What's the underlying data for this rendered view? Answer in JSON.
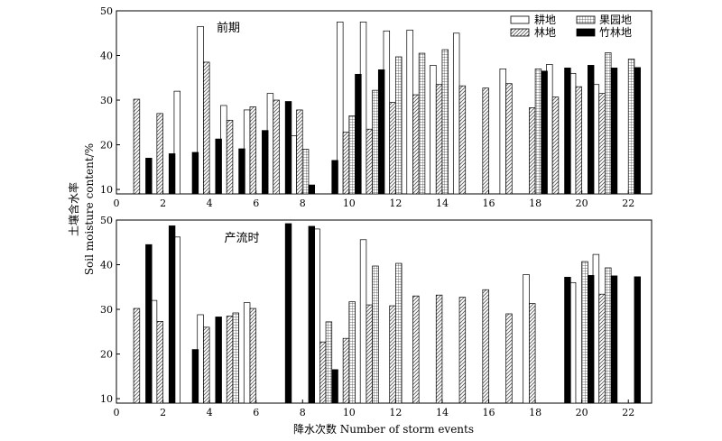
{
  "chart_data": {
    "type": "bar",
    "ylabel_cn": "土壤含水率",
    "ylabel_en": "Soil moisture content/%",
    "xlabel": "降水次数 Number of storm events",
    "x_ticks": [
      0,
      2,
      4,
      6,
      8,
      10,
      12,
      14,
      16,
      18,
      20,
      22
    ],
    "ylim": [
      9,
      50
    ],
    "y_ticks": [
      10,
      20,
      30,
      40,
      50
    ],
    "x_range": [
      0,
      23
    ],
    "legend": [
      {
        "key": "cropland",
        "label": "耕地",
        "fill": "#ffffff",
        "pattern": "plain"
      },
      {
        "key": "orchard",
        "label": "果园地",
        "fill": "#ffffff",
        "pattern": "grid"
      },
      {
        "key": "forest",
        "label": "林地",
        "fill": "#ffffff",
        "pattern": "hatch"
      },
      {
        "key": "bamboo",
        "label": "竹林地",
        "fill": "#000000",
        "pattern": "solid"
      }
    ],
    "series_order": [
      "cropland",
      "forest",
      "orchard",
      "bamboo"
    ],
    "panels": [
      {
        "title": "前期",
        "series": {
          "cropland": [
            null,
            null,
            32.0,
            46.5,
            28.8,
            27.8,
            31.5,
            22.0,
            null,
            47.5,
            47.5,
            45.5,
            45.7,
            37.8,
            45.0,
            null,
            37.0,
            null,
            38.0,
            36.0,
            33.5,
            null
          ],
          "forest": [
            30.2,
            27.0,
            null,
            38.5,
            25.5,
            28.5,
            30.0,
            27.8,
            null,
            22.8,
            23.5,
            29.5,
            31.2,
            33.5,
            33.2,
            32.7,
            33.7,
            28.3,
            30.7,
            33.0,
            31.5,
            null
          ],
          "orchard": [
            null,
            null,
            null,
            null,
            null,
            null,
            null,
            19.0,
            null,
            26.5,
            32.2,
            39.7,
            40.5,
            41.3,
            null,
            null,
            null,
            37.0,
            null,
            null,
            40.6,
            39.2
          ],
          "bamboo": [
            17.0,
            18.0,
            18.3,
            21.3,
            19.1,
            23.2,
            29.7,
            11.0,
            16.5,
            35.8,
            36.8,
            null,
            null,
            null,
            null,
            null,
            null,
            36.5,
            37.2,
            37.8,
            37.2,
            37.3
          ]
        }
      },
      {
        "title": "产流时",
        "series": {
          "cropland": [
            null,
            32.0,
            46.2,
            28.8,
            null,
            31.5,
            null,
            null,
            48.0,
            null,
            45.6,
            null,
            null,
            null,
            null,
            null,
            null,
            37.8,
            null,
            36.0,
            42.3,
            null
          ],
          "forest": [
            30.2,
            27.3,
            null,
            26.0,
            28.5,
            30.2,
            null,
            null,
            22.7,
            23.5,
            31.0,
            30.8,
            33.0,
            33.2,
            32.7,
            34.4,
            29.0,
            31.3,
            null,
            null,
            33.4,
            null
          ],
          "orchard": [
            null,
            null,
            null,
            null,
            29.2,
            null,
            null,
            null,
            27.2,
            31.7,
            39.7,
            40.3,
            null,
            null,
            null,
            null,
            null,
            null,
            null,
            40.7,
            39.3,
            null
          ],
          "bamboo": [
            44.5,
            48.7,
            21.0,
            28.3,
            null,
            null,
            49.2,
            48.6,
            16.5,
            null,
            null,
            null,
            null,
            null,
            null,
            null,
            null,
            null,
            37.2,
            37.6,
            37.5,
            37.3
          ]
        }
      }
    ]
  }
}
